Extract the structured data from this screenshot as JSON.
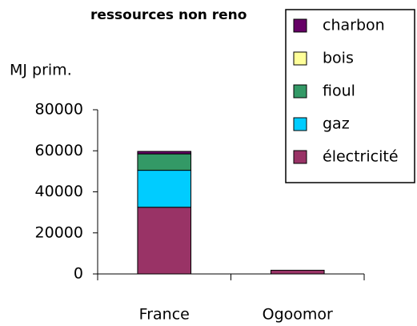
{
  "chart_data": {
    "type": "bar",
    "stacked": true,
    "title": "ressources non reno",
    "ylabel": "MJ prim.",
    "categories": [
      "France",
      "Ogoomor"
    ],
    "series": [
      {
        "name": "électricité",
        "color": "#993366",
        "values": [
          32500,
          1800
        ]
      },
      {
        "name": "gaz",
        "color": "#00ccff",
        "values": [
          18000,
          0
        ]
      },
      {
        "name": "fioul",
        "color": "#339966",
        "values": [
          8000,
          0
        ]
      },
      {
        "name": "bois",
        "color": "#ffff99",
        "values": [
          0,
          0
        ]
      },
      {
        "name": "charbon",
        "color": "#660066",
        "values": [
          1200,
          0
        ]
      }
    ],
    "ylim": [
      0,
      80000
    ],
    "yticks": [
      0,
      20000,
      40000,
      60000,
      80000
    ],
    "legend": "upper right"
  }
}
